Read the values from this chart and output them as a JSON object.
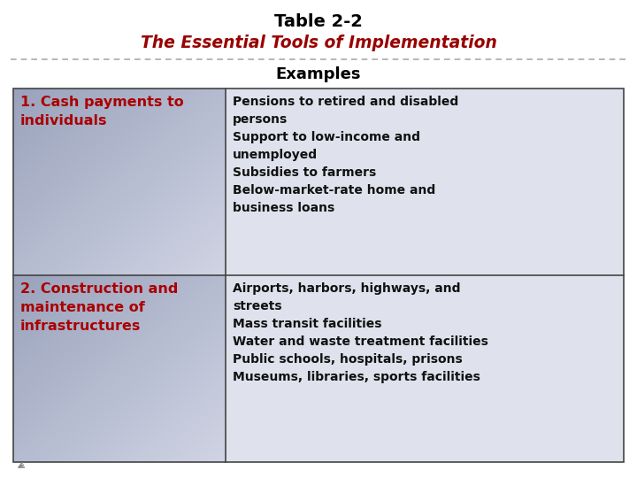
{
  "title_line1": "Table 2-2",
  "title_line2": "The Essential Tools of Implementation",
  "col_header": "Examples",
  "border_color": "#444444",
  "dashed_line_color": "#aaaaaa",
  "left_col_color": "#aa0000",
  "right_col_color": "#111111",
  "left_cell_bg": "#b8bfd0",
  "right_cell_bg": "#e8eaf0",
  "row1_left": "1. Cash payments to\nindividuals",
  "row1_right": "Pensions to retired and disabled\npersons\nSupport to low-income and\nunemployed\nSubsidies to farmers\nBelow-market-rate home and\nbusiness loans",
  "row2_left": "2. Construction and\nmaintenance of\ninfrastructures",
  "row2_right": "Airports, harbors, highways, and\nstreets\nMass transit facilities\nWater and waste treatment facilities\nPublic schools, hospitals, prisons\nMuseums, libraries, sports facilities",
  "fig_width": 7.2,
  "fig_height": 5.4,
  "dpi": 100
}
